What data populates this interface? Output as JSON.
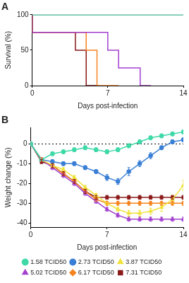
{
  "chart_data": [
    {
      "type": "line",
      "title": "A",
      "x_label": "Days post-infection",
      "y_label": "Survival (%)",
      "xlim": [
        0,
        14
      ],
      "xticks": [
        0,
        7,
        14
      ],
      "ylim": [
        0,
        100
      ],
      "yticks": [
        0,
        50,
        100
      ],
      "grid": false,
      "line_style": "step",
      "series": [
        {
          "name": "1.58 TCID50",
          "color": "#3fd9a8",
          "x": [
            0,
            14
          ],
          "values": [
            100,
            100
          ]
        },
        {
          "name": "2.73 TCID50",
          "color": "#3a7fd6",
          "x": [
            0,
            14
          ],
          "values": [
            100,
            100
          ]
        },
        {
          "name": "3.87 TCID50",
          "color": "#f0e23a",
          "x": [
            0,
            14
          ],
          "values": [
            100,
            100
          ]
        },
        {
          "name": "5.02 TCID50",
          "color": "#a23fcf",
          "x": [
            0,
            7,
            8,
            10,
            11
          ],
          "values": [
            100,
            75,
            50,
            25,
            0
          ]
        },
        {
          "name": "6.17 TCID50",
          "color": "#f5841f",
          "x": [
            0,
            5,
            6,
            8
          ],
          "values": [
            100,
            75,
            50,
            0
          ]
        },
        {
          "name": "7.31 TCID50",
          "color": "#8b1a1a",
          "x": [
            0,
            4,
            5,
            6
          ],
          "values": [
            100,
            75,
            50,
            0
          ]
        }
      ]
    },
    {
      "type": "line",
      "title": "B",
      "x_label": "Days post-infection",
      "y_label": "Weight change (%)",
      "xlim": [
        0,
        14
      ],
      "xticks": [
        0,
        7,
        14
      ],
      "ylim": [
        -42,
        8
      ],
      "yticks": [
        -40,
        -30,
        -20,
        -10,
        0
      ],
      "grid": false,
      "legend": "bottom",
      "x": [
        0,
        1,
        2,
        3,
        4,
        5,
        6,
        7,
        8,
        9,
        10,
        11,
        12,
        13,
        14
      ],
      "series": [
        {
          "name": "1.58 TCID50",
          "color": "#3fd9a8",
          "marker": "circle",
          "values": [
            0,
            -8,
            -5,
            -4,
            -3,
            -2,
            -3,
            -4,
            -3,
            -1,
            1,
            3,
            4,
            5,
            6
          ],
          "errors": [
            0,
            1,
            1,
            1,
            1,
            1,
            1,
            1,
            1,
            1,
            1,
            1,
            1,
            1,
            1
          ]
        },
        {
          "name": "2.73 TCID50",
          "color": "#3a7fd6",
          "marker": "circle",
          "values": [
            0,
            -8,
            -9,
            -10,
            -10,
            -12,
            -14,
            -17,
            -19,
            -14,
            -10,
            -6,
            -2,
            1,
            2
          ],
          "errors": [
            0,
            1,
            1,
            1,
            1,
            1,
            1,
            1.5,
            1.5,
            2,
            1.5,
            1.5,
            1,
            1,
            1
          ]
        },
        {
          "name": "3.87 TCID50",
          "color": "#f0e23a",
          "marker": "triangle",
          "values": [
            0,
            -8,
            -11,
            -13,
            -17,
            -22,
            -26,
            -30,
            -33,
            -35,
            -35,
            -34,
            -32,
            -28,
            -21
          ],
          "errors": [
            0,
            1,
            1,
            1,
            1,
            1,
            1,
            1,
            1,
            1.5,
            1.5,
            1.5,
            2,
            2,
            2.5
          ]
        },
        {
          "name": "5.02 TCID50",
          "color": "#a23fcf",
          "marker": "triangle",
          "values": [
            0,
            -8,
            -12,
            -16,
            -20,
            -25,
            -29,
            -33,
            -36,
            -38,
            -38,
            -38,
            -38,
            -38,
            -38
          ],
          "errors": [
            0,
            1,
            1,
            1,
            1,
            1,
            1,
            1,
            1,
            1,
            1,
            1,
            1,
            1,
            1
          ]
        },
        {
          "name": "6.17 TCID50",
          "color": "#f5841f",
          "marker": "rectRot",
          "values": [
            0,
            -8,
            -11,
            -15,
            -19,
            -24,
            -28,
            -30,
            -30,
            -30,
            -30,
            -30,
            -30,
            -30,
            -30
          ],
          "errors": [
            0,
            1,
            1,
            1,
            1,
            1,
            1,
            1,
            1,
            1,
            1,
            1,
            1,
            1,
            1
          ]
        },
        {
          "name": "7.31 TCID50",
          "color": "#8b1a1a",
          "marker": "rect",
          "values": [
            0,
            -9,
            -11,
            -15,
            -19,
            -24,
            -27,
            -27,
            -27,
            -27,
            -27,
            -27,
            -27,
            -27,
            -27
          ],
          "errors": [
            0,
            1,
            1,
            1,
            1,
            1,
            1,
            1,
            1,
            1,
            1,
            1,
            1,
            1,
            1
          ]
        }
      ]
    }
  ]
}
